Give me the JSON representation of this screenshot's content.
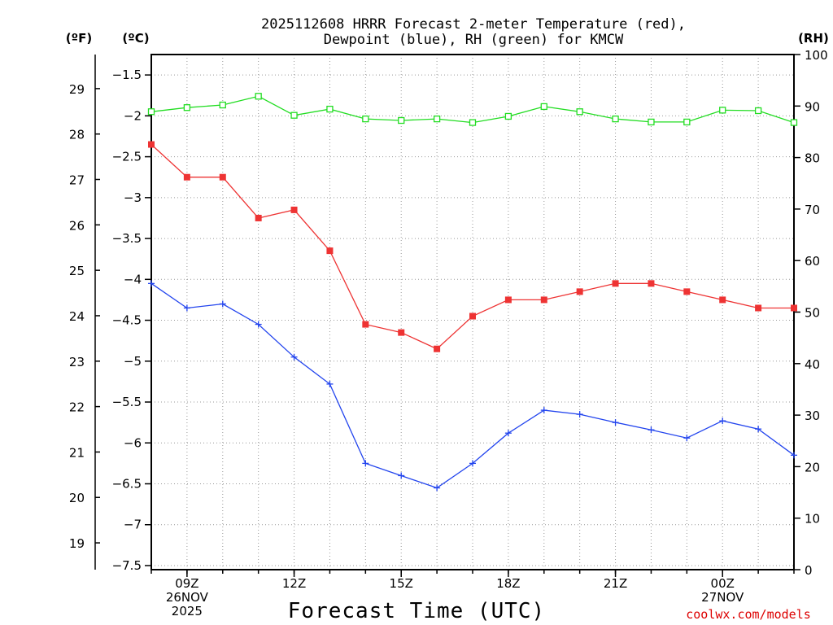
{
  "chart_data": {
    "type": "line",
    "title_line1": "2025112608 HRRR Forecast 2-meter Temperature (red),",
    "title_line2": "Dewpoint (blue), RH (green) for KMCW",
    "xlabel": "Forecast Time (UTC)",
    "credit": "coolwx.com/models",
    "units": {
      "fahrenheit": "(ºF)",
      "celsius": "(ºC)",
      "rh": "(RH)"
    },
    "x_hours": [
      8,
      9,
      10,
      11,
      12,
      13,
      14,
      15,
      16,
      17,
      18,
      19,
      20,
      21,
      22,
      23,
      24,
      25,
      26
    ],
    "xlim": [
      8,
      26
    ],
    "celsius_axis": {
      "ylim": [
        -7.55,
        -1.25
      ],
      "ticks": [
        -1.5,
        -2,
        -2.5,
        -3,
        -3.5,
        -4,
        -4.5,
        -5,
        -5.5,
        -6,
        -6.5,
        -7,
        -7.5
      ],
      "tick_labels": [
        "−1.5",
        "−2",
        "−2.5",
        "−3",
        "−3.5",
        "−4",
        "−4.5",
        "−5",
        "−5.5",
        "−6",
        "−6.5",
        "−7",
        "−7.5"
      ]
    },
    "fahrenheit_axis": {
      "ticks": [
        19,
        20,
        21,
        22,
        23,
        24,
        25,
        26,
        27,
        28,
        29
      ],
      "tick_labels": [
        "19",
        "20",
        "21",
        "22",
        "23",
        "24",
        "25",
        "26",
        "27",
        "28",
        "29"
      ]
    },
    "rh_axis": {
      "ylim": [
        0,
        100
      ],
      "ticks": [
        0,
        10,
        20,
        30,
        40,
        50,
        60,
        70,
        80,
        90,
        100
      ],
      "tick_labels": [
        "0",
        "10",
        "20",
        "30",
        "40",
        "50",
        "60",
        "70",
        "80",
        "90",
        "100"
      ]
    },
    "x_ticks": [
      {
        "hour": 9,
        "lines": [
          "09Z",
          "26NOV",
          "2025"
        ]
      },
      {
        "hour": 12,
        "lines": [
          "12Z"
        ]
      },
      {
        "hour": 15,
        "lines": [
          "15Z"
        ]
      },
      {
        "hour": 18,
        "lines": [
          "18Z"
        ]
      },
      {
        "hour": 21,
        "lines": [
          "21Z"
        ]
      },
      {
        "hour": 24,
        "lines": [
          "00Z",
          "27NOV"
        ]
      }
    ],
    "series": [
      {
        "name": "Temperature",
        "color": "#ee3333",
        "marker": "filled-square",
        "axis": "celsius",
        "values": [
          -2.35,
          -2.75,
          -2.75,
          -3.25,
          -3.15,
          -3.65,
          -4.55,
          -4.65,
          -4.85,
          -4.45,
          -4.25,
          -4.25,
          -4.15,
          -4.05,
          -4.05,
          -4.15,
          -4.25,
          -4.35,
          -4.35
        ]
      },
      {
        "name": "Dewpoint",
        "color": "#2244ee",
        "marker": "plus",
        "axis": "celsius",
        "values": [
          -4.05,
          -4.35,
          -4.3,
          -4.55,
          -4.95,
          -5.28,
          -6.25,
          -6.4,
          -6.55,
          -6.25,
          -5.88,
          -5.6,
          -5.65,
          -5.75,
          -5.84,
          -5.94,
          -5.73,
          -5.83,
          -6.15
        ]
      },
      {
        "name": "RH",
        "color": "#22dd22",
        "marker": "open-square",
        "axis": "rh",
        "values": [
          88.9,
          89.7,
          90.2,
          91.9,
          88.2,
          89.4,
          87.5,
          87.2,
          87.5,
          86.8,
          88.0,
          89.9,
          88.9,
          87.5,
          86.9,
          86.9,
          89.2,
          89.1,
          86.8
        ]
      }
    ]
  }
}
